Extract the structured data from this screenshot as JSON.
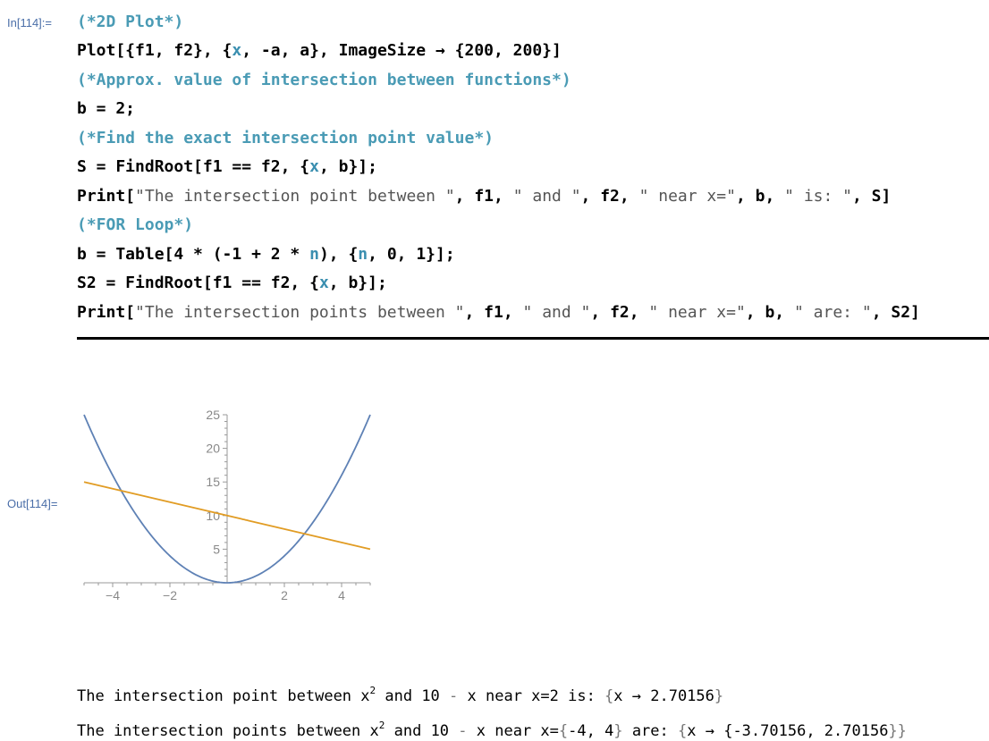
{
  "cell": {
    "in_label": "In[114]:=",
    "out_label": "Out[114]=",
    "lines": {
      "c1": "(*2D Plot*)",
      "l2a": "Plot[{f1, f2}, {",
      "l2b": "x",
      "l2c": ", -a, a}, ImageSize → {200, 200}]",
      "c3": "(*Approx. value of intersection between functions*)",
      "l4": "b = 2;",
      "c5": "(*Find the exact intersection point value*)",
      "l6a": "S = FindRoot[f1 == f2, {",
      "l6b": "x",
      "l6c": ", b}];",
      "l7a": "Print[",
      "l7b": "\"The intersection point between \"",
      "l7c": ", f1, ",
      "l7d": "\" and \"",
      "l7e": ", f2, ",
      "l7f": "\" near x=\"",
      "l7g": ", b, ",
      "l7h": "\" is: \"",
      "l7i": ", S]",
      "c8": "(*FOR Loop*)",
      "l9a": "b = Table[4 * (-1 + 2 * ",
      "l9b": "n",
      "l9c": "), {",
      "l9d": "n",
      "l9e": ", 0, 1}];",
      "l10a": "S2 = FindRoot[f1 == f2, {",
      "l10b": "x",
      "l10c": ", b}];",
      "l11a": "Print[",
      "l11b": "\"The intersection points between \"",
      "l11c": ", f1, ",
      "l11d": "\" and \"",
      "l11e": ", f2, ",
      "l11f": "\" near x=\"",
      "l11g": ", b, ",
      "l11h": "\" are: \"",
      "l11i": ", S2]"
    }
  },
  "output": {
    "line1": {
      "a": "The intersection point between x",
      "sup": "2",
      "b": " and 10",
      "c": " - ",
      "d": "x near x=2 is: ",
      "e": "{",
      "f": "x → 2.70156",
      "g": "}"
    },
    "line2": {
      "a": "The intersection points between x",
      "sup": "2",
      "b": " and 10",
      "c": " - ",
      "d": "x near x=",
      "e": "{",
      "f": "-4, 4",
      "g": "}",
      "h": " are: ",
      "i": "{",
      "j": "x → {",
      "k": "-3.70156, 2.70156",
      "l": "}}"
    }
  },
  "chart_data": {
    "type": "line",
    "xlim": [
      -5,
      5
    ],
    "ylim": [
      0,
      25
    ],
    "xticks": [
      "-4",
      "-2",
      "2",
      "4"
    ],
    "yticks": [
      "5",
      "10",
      "15",
      "20",
      "25"
    ],
    "series": [
      {
        "function": "x^2",
        "color": "#5e81b5"
      },
      {
        "function": "10 - x",
        "color": "#e19c24"
      }
    ],
    "grid": false
  }
}
